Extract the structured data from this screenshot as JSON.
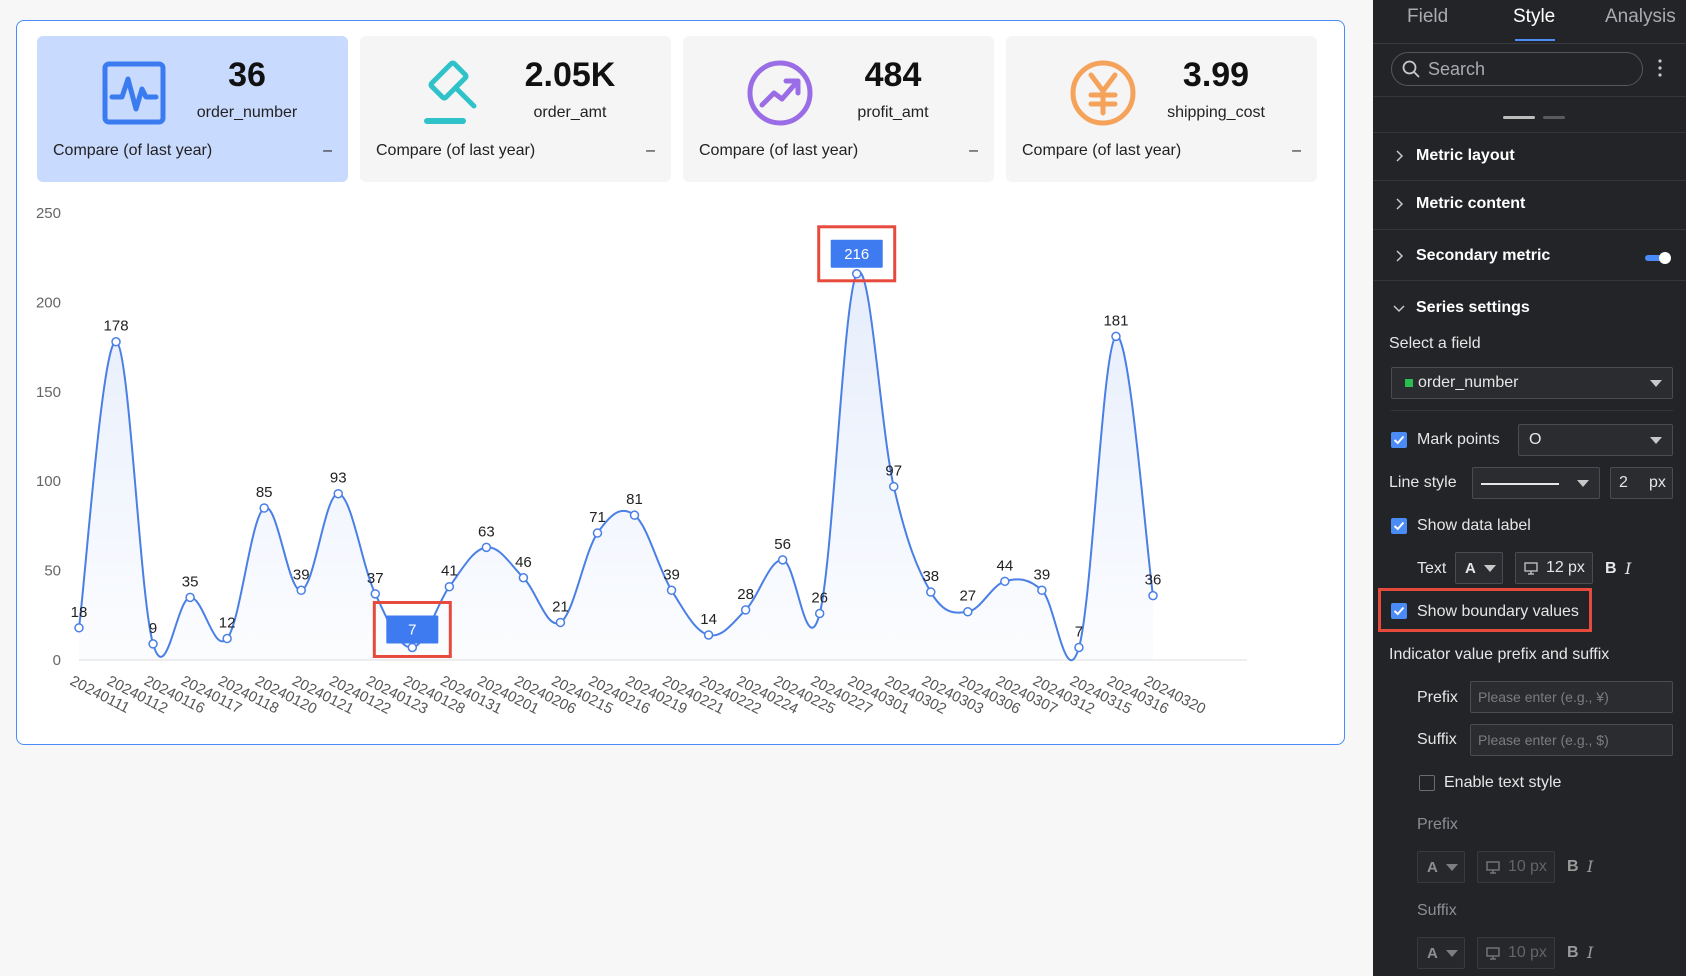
{
  "kpis": [
    {
      "value": "36",
      "label": "order_number",
      "compare": "Compare (of last year)",
      "dash": "–",
      "icon": "pulse-icon",
      "color": "#3a7bf0",
      "selected": true
    },
    {
      "value": "2.05K",
      "label": "order_amt",
      "compare": "Compare (of last year)",
      "dash": "–",
      "icon": "hammer-icon",
      "color": "#2fc3c9",
      "selected": false
    },
    {
      "value": "484",
      "label": "profit_amt",
      "compare": "Compare (of last year)",
      "dash": "–",
      "icon": "trend-up-icon",
      "color": "#9a6ce6",
      "selected": false
    },
    {
      "value": "3.99",
      "label": "shipping_cost",
      "compare": "Compare (of last year)",
      "dash": "–",
      "icon": "yen-icon",
      "color": "#f5a25a",
      "selected": false
    }
  ],
  "chart_data": {
    "type": "line",
    "smooth": true,
    "area": true,
    "series": [
      {
        "name": "order_number",
        "color": "#4a7fe6"
      }
    ],
    "categories": [
      "20240111",
      "20240112",
      "20240116",
      "20240117",
      "20240118",
      "20240120",
      "20240121",
      "20240122",
      "20240123",
      "20240128",
      "20240131",
      "20240201",
      "20240206",
      "20240215",
      "20240216",
      "20240219",
      "20240221",
      "20240222",
      "20240224",
      "20240225",
      "20240227",
      "20240301",
      "20240302",
      "20240303",
      "20240306",
      "20240307",
      "20240312",
      "20240315",
      "20240316",
      "20240320"
    ],
    "values": [
      18,
      178,
      9,
      35,
      12,
      85,
      39,
      93,
      37,
      7,
      41,
      63,
      46,
      21,
      71,
      81,
      39,
      14,
      28,
      56,
      26,
      216,
      97,
      38,
      27,
      44,
      39,
      7,
      181,
      36
    ],
    "data_labels": [
      "18",
      "178",
      "9",
      "35",
      "12",
      "85",
      "39",
      "93",
      "37",
      "7",
      "41",
      "63",
      "46",
      "21",
      "71",
      "81",
      "39",
      "14",
      "28",
      "56",
      "26",
      "216",
      "97",
      "38",
      "27",
      "44",
      "39",
      "7",
      "181",
      "36"
    ],
    "ylim": [
      0,
      250
    ],
    "yticks": [
      "0",
      "50",
      "100",
      "150",
      "200",
      "250"
    ],
    "boundary_values": {
      "max_label": "216",
      "min_label": "7",
      "max_index": 21,
      "min_index": 9
    }
  },
  "panel": {
    "tabs": [
      "Field",
      "Style",
      "Analysis"
    ],
    "active_tab": "Style",
    "search_placeholder": "Search",
    "sections": {
      "metric_layout": "Metric layout",
      "metric_content": "Metric content",
      "secondary_metric": "Secondary metric",
      "series_settings": "Series settings"
    },
    "select_field_label": "Select a field",
    "selected_field": "order_number",
    "field_color": "#2bbd4e",
    "mark_points_label": "Mark points",
    "mark_point_shape": "O",
    "line_style_label": "Line style",
    "line_width": "2",
    "px": "px",
    "show_data_label": "Show data label",
    "text_label": "Text",
    "font_a": "A",
    "text_size": "12",
    "bold": "B",
    "italic": "I",
    "show_boundary_values": "Show boundary values",
    "prefix_suffix_label": "Indicator value prefix and suffix",
    "prefix_label": "Prefix",
    "prefix_placeholder": "Please enter (e.g., ¥)",
    "suffix_label": "Suffix",
    "suffix_placeholder": "Please enter (e.g., $)",
    "enable_text_style": "Enable text style",
    "prefix_heading": "Prefix",
    "suffix_heading": "Suffix",
    "small_size": "10"
  }
}
